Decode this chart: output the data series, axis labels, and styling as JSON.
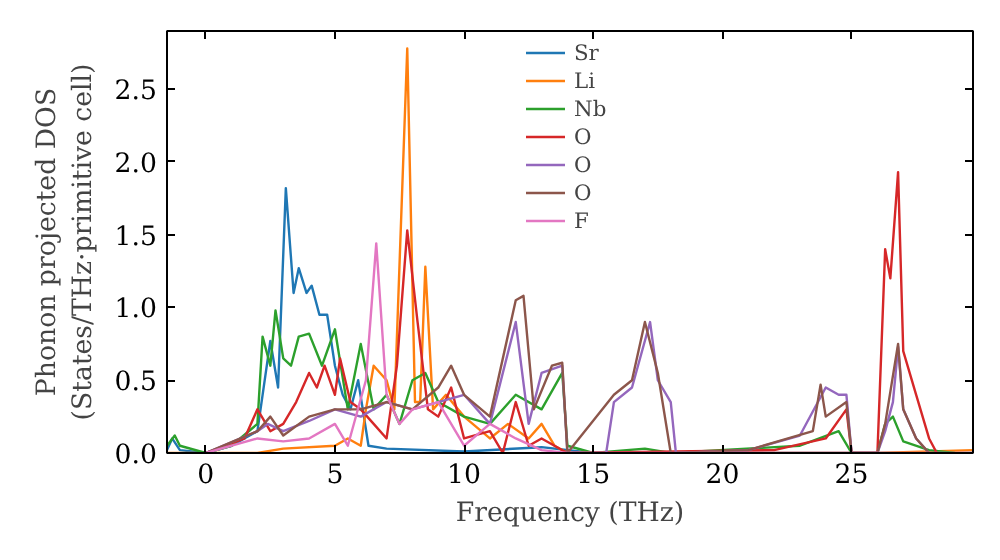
{
  "chart_data": {
    "type": "line",
    "xlabel": "Frequency (THz)",
    "ylabel": "Phonon projected DOS\n(States/THz·primitive cell)",
    "xlim": [
      -1.5,
      29.7
    ],
    "ylim": [
      0,
      2.9
    ],
    "xticks": [
      0,
      5,
      10,
      15,
      20,
      25
    ],
    "yticks": [
      {
        "value": 0,
        "label": "0.0"
      },
      0.5,
      {
        "value": 1,
        "label": "1.0"
      },
      1.5,
      {
        "value": 2,
        "label": "2.0"
      },
      2.5
    ],
    "grid": false,
    "legend": "top",
    "marker": "none",
    "line_style": "solid",
    "series": [
      {
        "name": "Sr",
        "color": "#1f77b4",
        "x": [
          -1.5,
          -1.3,
          -1,
          0,
          1,
          2,
          2.5,
          2.8,
          3.1,
          3.4,
          3.6,
          3.9,
          4.1,
          4.4,
          4.7,
          5,
          5.3,
          5.6,
          5.9,
          6.3,
          7,
          10,
          13,
          15,
          29.7
        ],
        "values": [
          0.02,
          0.1,
          0.02,
          0,
          0.05,
          0.15,
          0.77,
          0.45,
          1.82,
          1.1,
          1.27,
          1.1,
          1.15,
          0.95,
          0.95,
          0.6,
          0.4,
          0.3,
          0.5,
          0.05,
          0.03,
          0.01,
          0.04,
          0,
          0
        ]
      },
      {
        "name": "Li",
        "color": "#ff7f0e",
        "x": [
          -1.5,
          2,
          3,
          5,
          5.5,
          6,
          6.2,
          6.5,
          7,
          7.3,
          7.8,
          8.1,
          8.3,
          8.5,
          8.8,
          9.3,
          10,
          11,
          11.7,
          12.5,
          13,
          13.5,
          14,
          26,
          29.7
        ],
        "values": [
          0,
          0,
          0.03,
          0.05,
          0.1,
          0.05,
          0.3,
          0.6,
          0.5,
          0.3,
          2.78,
          0.35,
          0.35,
          1.28,
          0.3,
          0.4,
          0.25,
          0.1,
          0.2,
          0.1,
          0.2,
          0.05,
          0,
          0,
          0.02
        ]
      },
      {
        "name": "Nb",
        "color": "#2ca02c",
        "x": [
          -1.5,
          -1.2,
          -1,
          0,
          1,
          2,
          2.2,
          2.5,
          2.7,
          3,
          3.3,
          3.6,
          4,
          4.5,
          5,
          5.5,
          6,
          6.5,
          7,
          7.5,
          8,
          8.5,
          9,
          10,
          11,
          12,
          13,
          13.8,
          14,
          15,
          17,
          18,
          23,
          24.5,
          25,
          26,
          26.3,
          26.6,
          27,
          28,
          29
        ],
        "values": [
          0.05,
          0.12,
          0.05,
          0,
          0.05,
          0.2,
          0.8,
          0.6,
          0.98,
          0.65,
          0.6,
          0.8,
          0.82,
          0.6,
          0.85,
          0.3,
          0.75,
          0.3,
          0.4,
          0.2,
          0.5,
          0.55,
          0.35,
          0.25,
          0.2,
          0.4,
          0.3,
          0.55,
          0.05,
          0,
          0.03,
          0,
          0.05,
          0.15,
          0,
          0,
          0.2,
          0.25,
          0.08,
          0.02,
          0
        ]
      },
      {
        "name": "O",
        "color": "#d62728",
        "x": [
          0,
          1.5,
          2,
          2.5,
          3,
          3.5,
          4,
          4.3,
          4.6,
          5,
          5.2,
          5.6,
          6,
          6.5,
          7,
          7.4,
          7.8,
          8.2,
          8.6,
          9,
          9.5,
          10,
          11,
          11.5,
          12,
          12.5,
          13,
          13.5,
          14,
          22,
          24,
          24.8,
          25,
          26,
          26.3,
          26.5,
          26.8,
          27,
          27.5,
          28,
          28.3
        ],
        "values": [
          0,
          0.1,
          0.3,
          0.15,
          0.2,
          0.35,
          0.55,
          0.45,
          0.6,
          0.4,
          0.65,
          0.35,
          0.3,
          0.2,
          0.1,
          0.6,
          1.53,
          0.9,
          0.3,
          0.25,
          0.45,
          0.1,
          0.15,
          0,
          0.35,
          0.05,
          0.1,
          0.05,
          0,
          0.02,
          0.1,
          0.3,
          0,
          0,
          1.4,
          1.2,
          1.93,
          0.7,
          0.4,
          0.1,
          0
        ]
      },
      {
        "name": "O",
        "color": "#9467bd",
        "x": [
          0,
          2,
          2.4,
          3,
          4,
          5,
          6,
          7,
          8,
          9,
          10,
          11,
          12,
          12.5,
          13,
          13.8,
          14,
          15.5,
          15.8,
          16.5,
          17.2,
          17.5,
          18,
          18.2,
          21,
          23,
          24,
          24.5,
          24.8,
          25,
          26,
          26.3,
          26.6,
          26.8,
          27,
          27.5,
          28
        ],
        "values": [
          0,
          0.15,
          0.2,
          0.15,
          0.22,
          0.3,
          0.25,
          0.35,
          0.3,
          0.35,
          0.4,
          0.2,
          0.9,
          0.2,
          0.55,
          0.6,
          0,
          0,
          0.35,
          0.45,
          0.9,
          0.5,
          0.35,
          0,
          0.02,
          0.12,
          0.45,
          0.4,
          0.4,
          0,
          0,
          0.15,
          0.35,
          0.73,
          0.3,
          0.1,
          0
        ]
      },
      {
        "name": "O",
        "color": "#8c564b",
        "x": [
          0,
          2,
          2.5,
          3,
          4,
          5,
          6,
          7,
          8,
          9,
          9.5,
          10,
          11,
          12,
          12.3,
          12.7,
          13.4,
          13.8,
          14,
          15.8,
          16.5,
          17,
          17.5,
          18,
          21,
          23.5,
          23.8,
          24,
          24.8,
          25,
          26,
          26.3,
          26.8,
          27,
          27.5,
          28
        ],
        "values": [
          0,
          0.15,
          0.25,
          0.12,
          0.25,
          0.3,
          0.3,
          0.35,
          0.3,
          0.45,
          0.6,
          0.4,
          0.25,
          1.05,
          1.08,
          0.3,
          0.6,
          0.62,
          0,
          0.4,
          0.5,
          0.9,
          0.55,
          0,
          0.02,
          0.15,
          0.47,
          0.25,
          0.35,
          0,
          0,
          0.2,
          0.75,
          0.3,
          0.1,
          0
        ]
      },
      {
        "name": "F",
        "color": "#e377c2",
        "x": [
          0,
          2,
          3,
          4,
          5,
          5.5,
          6.2,
          6.6,
          7,
          7.5,
          8,
          9,
          10,
          11,
          12,
          13,
          14,
          29.7
        ],
        "values": [
          0,
          0.1,
          0.08,
          0.1,
          0.2,
          0.05,
          0.5,
          1.44,
          0.4,
          0.2,
          0.3,
          0.35,
          0.05,
          0.2,
          0.1,
          0.02,
          0,
          0
        ]
      }
    ]
  }
}
